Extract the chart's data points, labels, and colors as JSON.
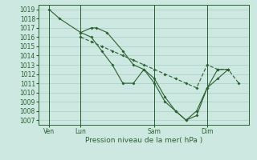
{
  "bg_color": "#cce8e0",
  "grid_color": "#a8cec8",
  "line_color": "#2a6030",
  "ylim": [
    1006.5,
    1019.5
  ],
  "yticks": [
    1007,
    1008,
    1009,
    1010,
    1011,
    1012,
    1013,
    1014,
    1015,
    1016,
    1017,
    1018,
    1019
  ],
  "xlabel": "Pression niveau de la mer( hPa )",
  "xtick_labels": [
    "Ven",
    "Lun",
    "Sam",
    "Dim"
  ],
  "xtick_positions": [
    1,
    4,
    11,
    16
  ],
  "vlines": [
    1,
    4,
    11,
    16
  ],
  "xlim": [
    0,
    20
  ],
  "s0_x": [
    1,
    2,
    4,
    5,
    5.5,
    6.5,
    8,
    9,
    10,
    11,
    12,
    13,
    14,
    15,
    16,
    17,
    18
  ],
  "s0_y": [
    1019.0,
    1018.0,
    1016.5,
    1017.0,
    1017.0,
    1016.5,
    1014.5,
    1013.0,
    1012.5,
    1011.0,
    1009.0,
    1008.0,
    1007.0,
    1007.5,
    1010.5,
    1011.5,
    1012.5
  ],
  "s1_x": [
    4,
    5,
    6,
    7,
    8,
    9,
    10,
    11,
    12,
    13,
    14,
    15,
    16,
    17,
    18
  ],
  "s1_y": [
    1016.5,
    1016.0,
    1014.5,
    1013.0,
    1011.0,
    1011.0,
    1012.5,
    1011.5,
    1009.5,
    1008.0,
    1007.0,
    1008.0,
    1010.5,
    1012.5,
    1012.5
  ],
  "s2_x": [
    4,
    5,
    6,
    7,
    8,
    9,
    10,
    11,
    12,
    13,
    14,
    15,
    16,
    17,
    18,
    19
  ],
  "s2_y": [
    1016.0,
    1015.5,
    1015.0,
    1014.5,
    1014.0,
    1013.5,
    1013.0,
    1012.5,
    1012.0,
    1011.5,
    1011.0,
    1010.5,
    1013.0,
    1012.5,
    1012.5,
    1011.0
  ]
}
